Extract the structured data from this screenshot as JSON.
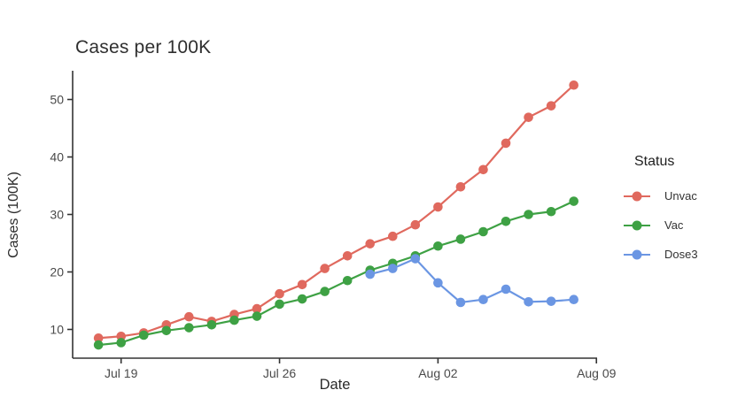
{
  "page": {
    "background": "#ffffff"
  },
  "chart_data": {
    "type": "line",
    "title": "Cases per 100K",
    "xlabel": "Date",
    "ylabel": "Cases (100K)",
    "grid": false,
    "ylim": [
      5,
      55
    ],
    "y_ticks": [
      10,
      20,
      30,
      40,
      50
    ],
    "x_ticks": [
      {
        "label": "Jul 19",
        "index": 1
      },
      {
        "label": "Jul 26",
        "index": 8
      },
      {
        "label": "Aug 02",
        "index": 15
      },
      {
        "label": "Aug 09",
        "index": 22
      }
    ],
    "x": [
      "Jul 18",
      "Jul 19",
      "Jul 20",
      "Jul 21",
      "Jul 22",
      "Jul 23",
      "Jul 24",
      "Jul 25",
      "Jul 26",
      "Jul 27",
      "Jul 28",
      "Jul 29",
      "Jul 30",
      "Jul 31",
      "Aug 01",
      "Aug 02",
      "Aug 03",
      "Aug 04",
      "Aug 05",
      "Aug 06",
      "Aug 07",
      "Aug 08"
    ],
    "legend": {
      "title": "Status",
      "position": "right"
    },
    "series": [
      {
        "name": "Unvac",
        "color": "#e0695e",
        "values": [
          8.5,
          8.8,
          9.4,
          10.8,
          12.2,
          11.4,
          12.6,
          13.6,
          16.2,
          17.8,
          20.6,
          22.8,
          24.9,
          26.2,
          28.2,
          31.3,
          34.8,
          37.8,
          42.4,
          46.9,
          48.9,
          52.5
        ]
      },
      {
        "name": "Vac",
        "color": "#3ea144",
        "values": [
          7.3,
          7.7,
          9.0,
          9.8,
          10.3,
          10.8,
          11.6,
          12.3,
          14.4,
          15.3,
          16.6,
          18.5,
          20.3,
          21.5,
          22.8,
          24.5,
          25.7,
          27.0,
          28.8,
          30.0,
          30.5,
          32.3
        ]
      },
      {
        "name": "Dose3",
        "color": "#6b96e3",
        "values": [
          null,
          null,
          null,
          null,
          null,
          null,
          null,
          null,
          null,
          null,
          null,
          null,
          19.6,
          20.6,
          22.3,
          18.1,
          14.7,
          15.2,
          17.0,
          14.8,
          14.9,
          15.2
        ]
      }
    ],
    "axis_color": "#333333",
    "tick_label_color": "#4a4a4a"
  }
}
